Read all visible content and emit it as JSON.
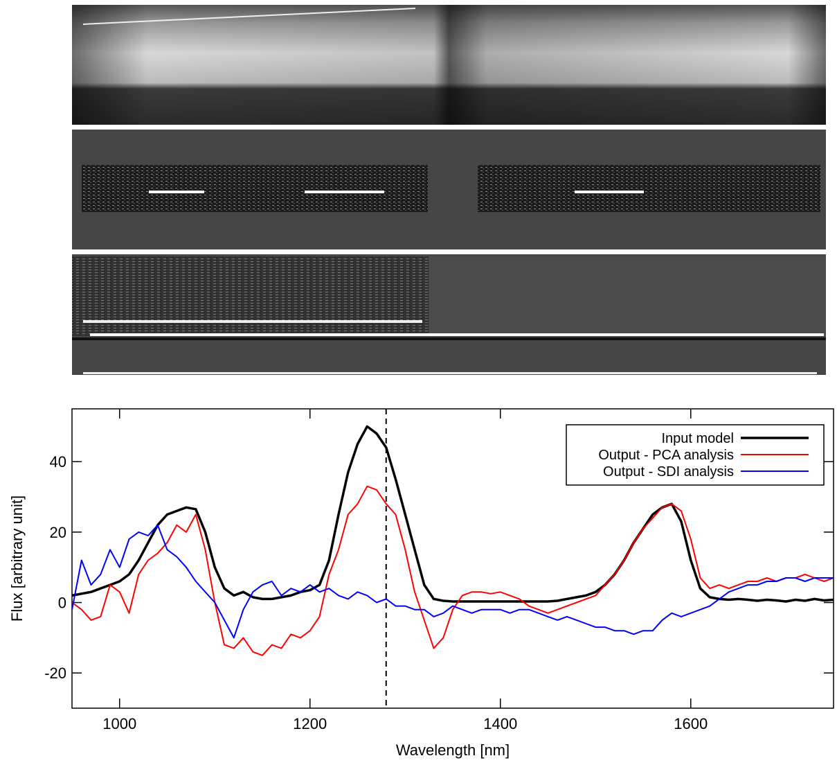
{
  "chart_data": {
    "type": "line",
    "xlabel": "Wavelength [nm]",
    "ylabel": "Flux [arbitrary unit]",
    "xlim": [
      950,
      1750
    ],
    "ylim": [
      -30,
      55
    ],
    "xticks": [
      1000,
      1200,
      1400,
      1600
    ],
    "yticks": [
      -20,
      0,
      20,
      40
    ],
    "vline": 1280,
    "legend": "upper right",
    "x": [
      950,
      960,
      970,
      980,
      990,
      1000,
      1010,
      1020,
      1030,
      1040,
      1050,
      1060,
      1070,
      1080,
      1090,
      1100,
      1110,
      1120,
      1130,
      1140,
      1150,
      1160,
      1170,
      1180,
      1190,
      1200,
      1210,
      1220,
      1230,
      1240,
      1250,
      1260,
      1270,
      1280,
      1290,
      1300,
      1310,
      1320,
      1330,
      1340,
      1350,
      1360,
      1370,
      1380,
      1390,
      1400,
      1410,
      1420,
      1430,
      1440,
      1450,
      1460,
      1470,
      1480,
      1490,
      1500,
      1510,
      1520,
      1530,
      1540,
      1550,
      1560,
      1570,
      1580,
      1590,
      1600,
      1610,
      1620,
      1630,
      1640,
      1650,
      1660,
      1670,
      1680,
      1690,
      1700,
      1710,
      1720,
      1730,
      1740,
      1750
    ],
    "series": [
      {
        "name": "Input model",
        "color": "#000000",
        "width": 3.5,
        "values": [
          2,
          2.5,
          3,
          4,
          5,
          6,
          8,
          12,
          17,
          22,
          25,
          26,
          27,
          26.5,
          20,
          10,
          4,
          2,
          3,
          1.5,
          1,
          1,
          1.5,
          2,
          3,
          3.5,
          5,
          12,
          25,
          37,
          45,
          50,
          48,
          44,
          35,
          25,
          15,
          5,
          1,
          0.5,
          0.3,
          0.3,
          0.3,
          0.3,
          0.3,
          0.3,
          0.3,
          0.3,
          0.3,
          0.3,
          0.3,
          0.5,
          1,
          1.5,
          2,
          3,
          5,
          8,
          12,
          17,
          21,
          25,
          27,
          28,
          23,
          12,
          4,
          1.5,
          1,
          0.8,
          1,
          0.8,
          0.5,
          0.8,
          0.6,
          0.3,
          0.8,
          0.5,
          1,
          0.6,
          0.8
        ]
      },
      {
        "name": "Output - PCA analysis",
        "color": "#ff0000",
        "width": 2,
        "values": [
          0,
          -2,
          -5,
          -4,
          5,
          3,
          -3,
          8,
          12,
          14,
          17,
          22,
          20,
          25,
          15,
          0,
          -12,
          -13,
          -10,
          -14,
          -15,
          -12,
          -13,
          -9,
          -10,
          -8,
          -4,
          8,
          15,
          25,
          28,
          33,
          32,
          28,
          25,
          15,
          3,
          -5,
          -13,
          -10,
          -2,
          2,
          3,
          3,
          2.5,
          3,
          2,
          1,
          -1,
          -2,
          -3,
          -2,
          -1,
          0,
          1,
          2,
          5,
          8,
          12,
          17,
          21,
          24,
          27,
          28,
          26,
          18,
          7,
          4,
          5,
          4,
          5,
          6,
          6,
          7,
          6,
          7,
          7,
          8,
          7,
          6,
          7
        ]
      },
      {
        "name": "Output - SDI analysis",
        "color": "#0000ff",
        "width": 2,
        "values": [
          -2,
          12,
          5,
          8,
          15,
          10,
          18,
          20,
          19,
          22,
          15,
          13,
          10,
          6,
          3,
          0,
          -5,
          -10,
          -2,
          3,
          5,
          6,
          2,
          4,
          3,
          5,
          3,
          4,
          2,
          1,
          3,
          2,
          0,
          1,
          -1,
          -1,
          -2,
          -2,
          -4,
          -3,
          -1,
          -2,
          -3,
          -2,
          -2,
          -2,
          -3,
          -2,
          -2,
          -3,
          -4,
          -5,
          -4,
          -5,
          -6,
          -7,
          -7,
          -8,
          -8,
          -9,
          -8,
          -8,
          -5,
          -3,
          -4,
          -3,
          -2,
          -1,
          1,
          3,
          4,
          5,
          5,
          6,
          6,
          7,
          7,
          6,
          7,
          7,
          7
        ]
      }
    ]
  }
}
